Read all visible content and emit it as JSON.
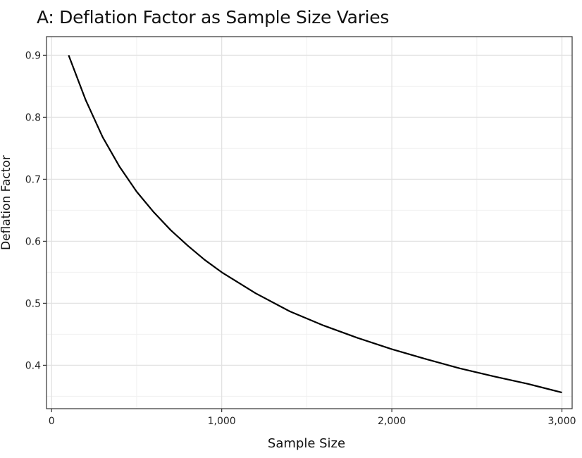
{
  "chart_data": {
    "type": "line",
    "title": "A: Deflation Factor as Sample Size Varies",
    "xlabel": "Sample Size",
    "ylabel": "Deflation Factor",
    "xlim": [
      -30,
      3060
    ],
    "ylim": [
      0.33,
      0.93
    ],
    "x_ticks": [
      0,
      1000,
      2000,
      3000
    ],
    "x_tick_labels": [
      "0",
      "1,000",
      "2,000",
      "3,000"
    ],
    "y_ticks": [
      0.4,
      0.5,
      0.6,
      0.7,
      0.8,
      0.9
    ],
    "y_tick_labels": [
      "0.4",
      "0.5",
      "0.6",
      "0.7",
      "0.8",
      "0.9"
    ],
    "grid": true,
    "legend": "none",
    "line_color": "#000000",
    "series": [
      {
        "x": [
          100,
          200,
          300,
          400,
          500,
          600,
          700,
          800,
          900,
          1000,
          1200,
          1400,
          1600,
          1800,
          2000,
          2200,
          2400,
          2600,
          2800,
          3000
        ],
        "values": [
          0.9,
          0.828,
          0.768,
          0.72,
          0.68,
          0.647,
          0.618,
          0.593,
          0.57,
          0.55,
          0.516,
          0.487,
          0.464,
          0.444,
          0.426,
          0.41,
          0.395,
          0.382,
          0.37,
          0.356
        ]
      }
    ]
  }
}
